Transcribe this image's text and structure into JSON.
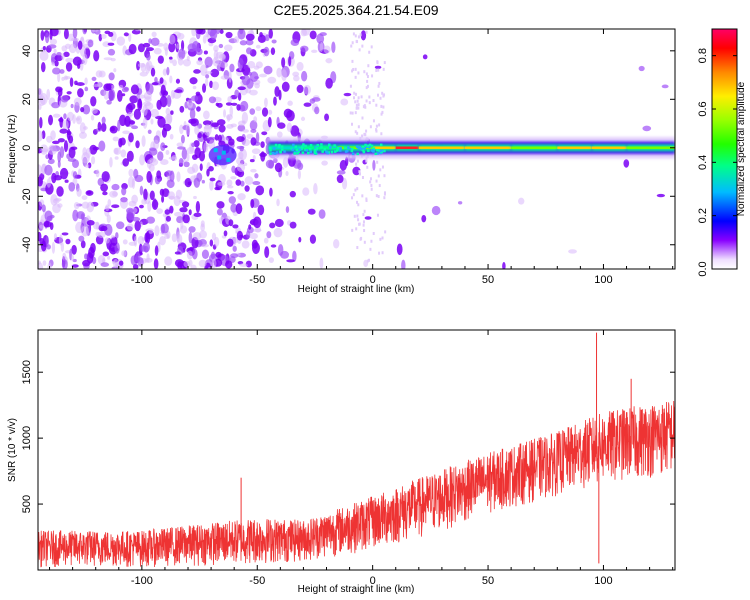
{
  "title": "C2E5.2025.364.21.54.E09",
  "chart_data": [
    {
      "type": "heatmap",
      "xlabel": "Height of straight line (km)",
      "ylabel": "Frequency (Hz)",
      "xlim": [
        -145,
        131
      ],
      "ylim": [
        -50,
        49
      ],
      "xticks": [
        -100,
        -50,
        0,
        50,
        100
      ],
      "yticks": [
        -40,
        -20,
        0,
        20,
        40
      ],
      "colorbar": {
        "label": "Normalized spectral amplitude",
        "range": [
          0,
          0.9
        ],
        "ticks": [
          0.0,
          0.2,
          0.4,
          0.6,
          0.8
        ],
        "tick_labels": [
          "0.0",
          "0.2",
          "0.4",
          "0.6",
          "0.8"
        ]
      },
      "ridge": {
        "description": "dominant narrow-band signal near 0 Hz",
        "frequency_hz": 0,
        "points": [
          {
            "x": -45,
            "amplitude": 0.35
          },
          {
            "x": -30,
            "amplitude": 0.45
          },
          {
            "x": -15,
            "amplitude": 0.55
          },
          {
            "x": 0,
            "amplitude": 0.7
          },
          {
            "x": 10,
            "amplitude": 0.9
          },
          {
            "x": 20,
            "amplitude": 0.9
          },
          {
            "x": 40,
            "amplitude": 0.75
          },
          {
            "x": 60,
            "amplitude": 0.7
          },
          {
            "x": 80,
            "amplitude": 0.7
          },
          {
            "x": 95,
            "amplitude": 0.75
          },
          {
            "x": 110,
            "amplitude": 0.7
          },
          {
            "x": 131,
            "amplitude": 0.7
          }
        ]
      },
      "blob": {
        "x": -65,
        "frequency_hz": -3,
        "amplitude": 0.3
      }
    },
    {
      "type": "line",
      "xlabel": "Height of straight line (km)",
      "ylabel": "SNR (10 * v/v)",
      "xlim": [
        -145,
        131
      ],
      "ylim": [
        0,
        1820
      ],
      "xticks": [
        -100,
        -50,
        0,
        50,
        100
      ],
      "yticks": [
        500,
        1000,
        1500
      ],
      "series": [
        {
          "name": "SNR",
          "color": "#ee3333",
          "envelope": [
            {
              "x": -145,
              "low": 20,
              "high": 300
            },
            {
              "x": -100,
              "low": 20,
              "high": 300
            },
            {
              "x": -50,
              "low": 40,
              "high": 400
            },
            {
              "x": -30,
              "low": 60,
              "high": 380
            },
            {
              "x": 0,
              "low": 150,
              "high": 560
            },
            {
              "x": 20,
              "low": 230,
              "high": 700
            },
            {
              "x": 50,
              "low": 420,
              "high": 890
            },
            {
              "x": 80,
              "low": 560,
              "high": 1050
            },
            {
              "x": 100,
              "low": 650,
              "high": 1200
            },
            {
              "x": 131,
              "low": 720,
              "high": 1300
            }
          ],
          "spikes": [
            {
              "x": -57,
              "value": 700
            },
            {
              "x": 97,
              "value": 1800
            },
            {
              "x": 98,
              "value": 50
            },
            {
              "x": 112,
              "value": 1450
            }
          ]
        }
      ]
    }
  ]
}
